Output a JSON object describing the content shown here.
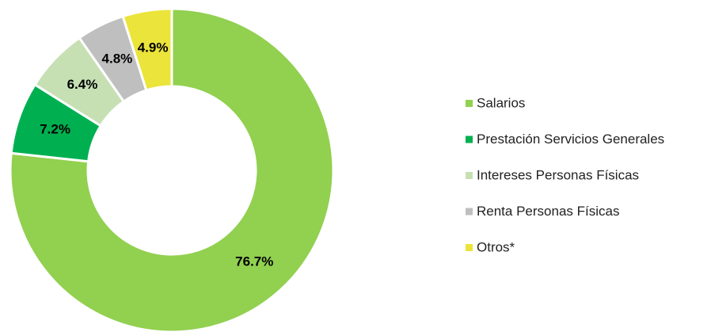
{
  "chart_data": {
    "type": "pie",
    "categories": [
      "Salarios",
      "Prestación Servicios Generales",
      "Intereses Personas Físicas",
      "Renta Personas Físicas",
      "Otros*"
    ],
    "values": [
      76.7,
      7.2,
      6.4,
      4.8,
      4.9
    ],
    "value_labels": [
      "76.7%",
      "7.2%",
      "6.4%",
      "4.8%",
      "4.9%"
    ],
    "colors": [
      "#92d050",
      "#00b050",
      "#c6e0b4",
      "#bfbfbf",
      "#ebe43b"
    ],
    "legend": "right"
  }
}
